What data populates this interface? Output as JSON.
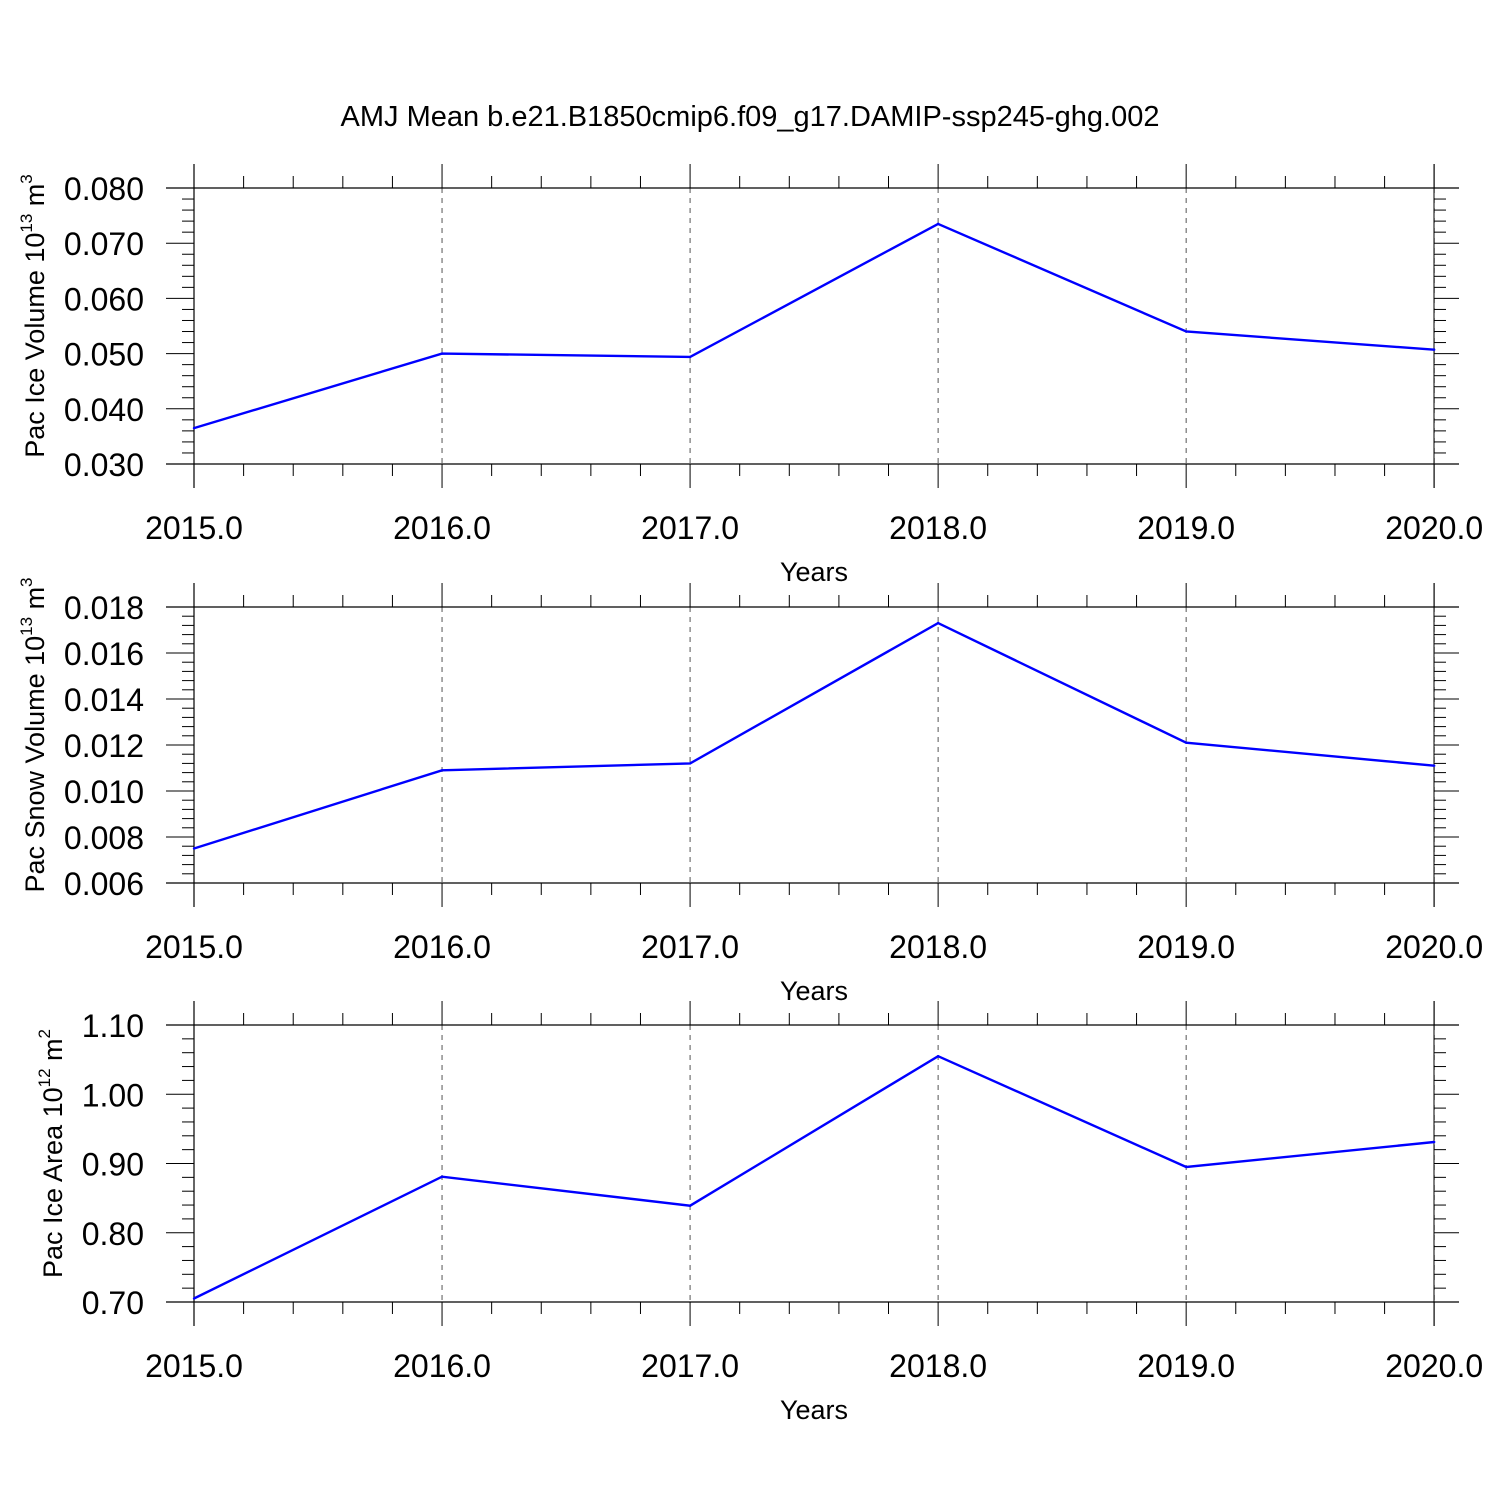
{
  "title": "AMJ Mean b.e21.B1850cmip6.f09_g17.DAMIP-ssp245-ghg.002",
  "colors": {
    "line": "#0000ff",
    "axis": "#000000",
    "grid": "#555555"
  },
  "chart_data": [
    {
      "type": "line",
      "ylabel": {
        "text": "Pac Ice Volume 10",
        "exp": "13",
        "unit": "m",
        "unit_exp": "3"
      },
      "xlabel": "Years",
      "x": [
        2015,
        2016,
        2017,
        2018,
        2019,
        2020
      ],
      "values": [
        0.0365,
        0.05,
        0.0494,
        0.0735,
        0.054,
        0.0507
      ],
      "xlim": [
        2015,
        2020.1
      ],
      "ylim": [
        0.03,
        0.08
      ],
      "yticks": [
        0.03,
        0.04,
        0.05,
        0.06,
        0.07,
        0.08
      ],
      "ytick_labels": [
        "0.030",
        "0.040",
        "0.050",
        "0.060",
        "0.070",
        "0.080"
      ],
      "xtick_labels": [
        "2015.0",
        "2016.0",
        "2017.0",
        "2018.0",
        "2019.0",
        "2020.0"
      ],
      "grid": "vertical dashed at major x ticks"
    },
    {
      "type": "line",
      "ylabel": {
        "text": "Pac Snow Volume 10",
        "exp": "13",
        "unit": "m",
        "unit_exp": "3"
      },
      "xlabel": "Years",
      "x": [
        2015,
        2016,
        2017,
        2018,
        2019,
        2020
      ],
      "values": [
        0.0075,
        0.0109,
        0.0112,
        0.0173,
        0.0121,
        0.0111
      ],
      "xlim": [
        2015,
        2020.1
      ],
      "ylim": [
        0.006,
        0.018
      ],
      "yticks": [
        0.006,
        0.008,
        0.01,
        0.012,
        0.014,
        0.016,
        0.018
      ],
      "ytick_labels": [
        "0.006",
        "0.008",
        "0.010",
        "0.012",
        "0.014",
        "0.016",
        "0.018"
      ],
      "xtick_labels": [
        "2015.0",
        "2016.0",
        "2017.0",
        "2018.0",
        "2019.0",
        "2020.0"
      ],
      "grid": "vertical dashed at major x ticks"
    },
    {
      "type": "line",
      "ylabel": {
        "text": "Pac Ice Area 10",
        "exp": "12",
        "unit": "m",
        "unit_exp": "2"
      },
      "xlabel": "Years",
      "x": [
        2015,
        2016,
        2017,
        2018,
        2019,
        2020
      ],
      "values": [
        0.705,
        0.881,
        0.839,
        1.055,
        0.895,
        0.931
      ],
      "xlim": [
        2015,
        2020.1
      ],
      "ylim": [
        0.7,
        1.1
      ],
      "yticks": [
        0.7,
        0.8,
        0.9,
        1.0,
        1.1
      ],
      "ytick_labels": [
        "0.70",
        "0.80",
        "0.90",
        "1.00",
        "1.10"
      ],
      "xtick_labels": [
        "2015.0",
        "2016.0",
        "2017.0",
        "2018.0",
        "2019.0",
        "2020.0"
      ],
      "grid": "vertical dashed at major x ticks"
    }
  ]
}
